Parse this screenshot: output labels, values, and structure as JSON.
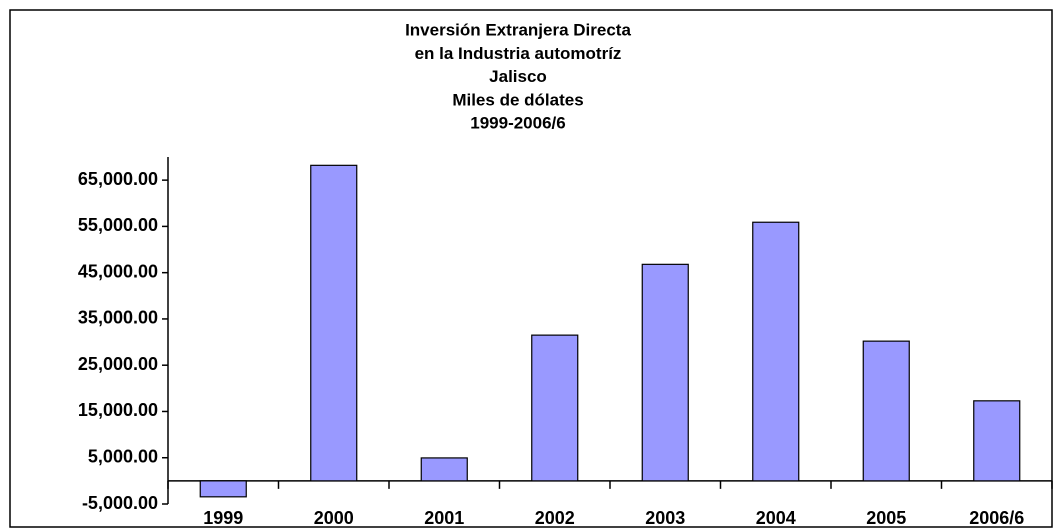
{
  "chart_data": {
    "type": "bar",
    "title": [
      "Inversión Extranjera Directa",
      "en la Industria automotríz",
      "Jalisco",
      "Miles de dólates",
      "1999-2006/6"
    ],
    "categories": [
      "1999",
      "2000",
      "2001",
      "2002",
      "2003",
      "2004",
      "2005",
      "2006/6"
    ],
    "values": [
      -3450,
      68200,
      4960,
      31500,
      46800,
      55900,
      30200,
      17300
    ],
    "color": "#9999ff",
    "ylim": [
      -5000,
      70000
    ],
    "yticks": [
      {
        "value": -5000,
        "label": "-5,000.00"
      },
      {
        "value": 5000,
        "label": "5,000.00"
      },
      {
        "value": 15000,
        "label": "15,000.00"
      },
      {
        "value": 25000,
        "label": "25,000.00"
      },
      {
        "value": 35000,
        "label": "35,000.00"
      },
      {
        "value": 45000,
        "label": "45,000.00"
      },
      {
        "value": 55000,
        "label": "55,000.00"
      },
      {
        "value": 65000,
        "label": "65,000.00"
      }
    ],
    "grid": false
  }
}
